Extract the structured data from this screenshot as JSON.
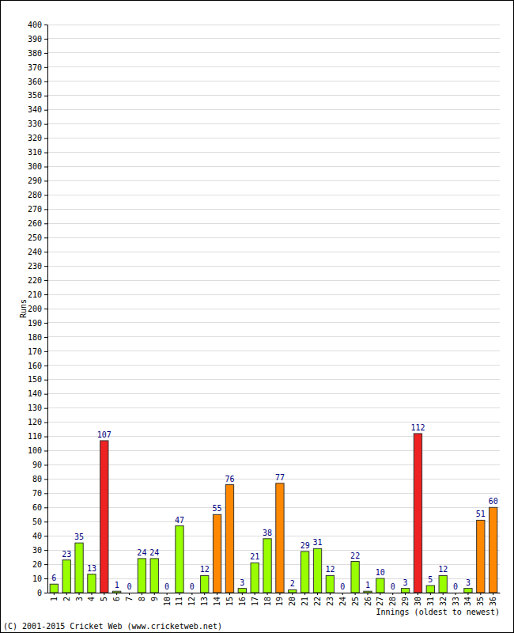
{
  "chart_data": {
    "type": "bar",
    "categories": [
      "1",
      "2",
      "3",
      "4",
      "5",
      "6",
      "7",
      "8",
      "9",
      "10",
      "11",
      "12",
      "13",
      "14",
      "15",
      "16",
      "17",
      "18",
      "19",
      "20",
      "21",
      "22",
      "23",
      "24",
      "25",
      "26",
      "27",
      "28",
      "29",
      "30",
      "31",
      "32",
      "33",
      "34",
      "35",
      "36"
    ],
    "values": [
      6,
      23,
      35,
      13,
      107,
      1,
      0,
      24,
      24,
      0,
      47,
      0,
      12,
      55,
      76,
      3,
      21,
      38,
      77,
      2,
      29,
      31,
      12,
      0,
      22,
      1,
      10,
      0,
      3,
      112,
      5,
      12,
      0,
      3,
      51,
      60
    ],
    "colors": [
      "#99ff00",
      "#99ff00",
      "#99ff00",
      "#99ff00",
      "#ee2222",
      "#99ff00",
      "#99ff00",
      "#99ff00",
      "#99ff00",
      "#99ff00",
      "#99ff00",
      "#99ff00",
      "#99ff00",
      "#ff8800",
      "#ff8800",
      "#99ff00",
      "#99ff00",
      "#99ff00",
      "#ff8800",
      "#99ff00",
      "#99ff00",
      "#99ff00",
      "#99ff00",
      "#99ff00",
      "#99ff00",
      "#99ff00",
      "#99ff00",
      "#99ff00",
      "#99ff00",
      "#ee2222",
      "#99ff00",
      "#99ff00",
      "#99ff00",
      "#99ff00",
      "#ff8800",
      "#ff8800"
    ],
    "ylim": [
      0,
      400
    ],
    "yticks": [
      0,
      10,
      20,
      30,
      40,
      50,
      60,
      70,
      80,
      90,
      100,
      110,
      120,
      130,
      140,
      150,
      160,
      170,
      180,
      190,
      200,
      210,
      220,
      230,
      240,
      250,
      260,
      270,
      280,
      290,
      300,
      310,
      320,
      330,
      340,
      350,
      360,
      370,
      380,
      390,
      400
    ],
    "grid": true,
    "data_labels": true,
    "y_label": "Runs",
    "x_label": "Innings (oldest to newest)",
    "annotations": [
      "(C) 2001-2015 Cricket Web (www.cricketweb.net)"
    ]
  }
}
